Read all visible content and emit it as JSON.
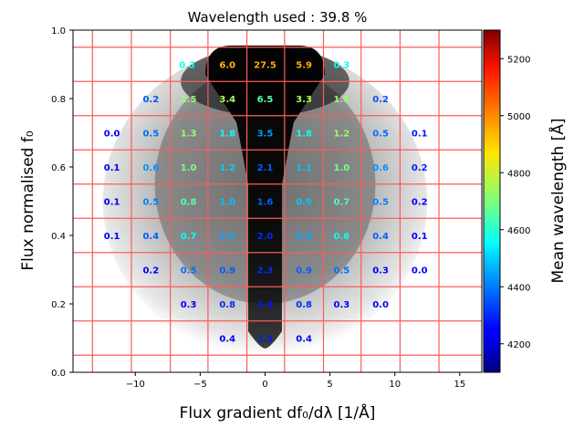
{
  "chart_data": {
    "type": "heatmap",
    "title": "Wavelength used : 39.8 %",
    "xlabel": "Flux gradient df₀/dλ [1/Å]",
    "ylabel": "Flux normalised f₀",
    "xlim": [
      -14.8,
      16.7
    ],
    "ylim": [
      0.0,
      1.0
    ],
    "xticks": [
      -10,
      -5,
      0,
      5,
      10,
      15
    ],
    "xtick_labels": [
      "−10",
      "−5",
      "0",
      "5",
      "10",
      "15"
    ],
    "yticks": [
      0.0,
      0.2,
      0.4,
      0.6,
      0.8,
      1.0
    ],
    "ytick_labels": [
      "0.0",
      "0.2",
      "0.4",
      "0.6",
      "0.8",
      "1.0"
    ],
    "grid_x_edges": [
      -13.3,
      -10.3,
      -7.3,
      -4.4,
      -1.4,
      1.5,
      4.5,
      7.4,
      10.4,
      13.4
    ],
    "grid_y_edges": [
      0.05,
      0.15,
      0.25,
      0.35,
      0.45,
      0.55,
      0.65,
      0.75,
      0.85,
      0.95
    ],
    "grid_color": "#ff5a5a",
    "colorbar": {
      "label": "Mean wavelength [Å]",
      "range": [
        4100,
        5300
      ],
      "ticks": [
        4200,
        4400,
        4600,
        4800,
        5000,
        5200
      ],
      "tick_labels": [
        "4200",
        "4400",
        "4600",
        "4800",
        "5000",
        "5200"
      ],
      "colormap": "jet"
    },
    "cells": [
      {
        "x": -6.0,
        "y": 0.9,
        "text": "0.3",
        "wavelength": 4560
      },
      {
        "x": -2.9,
        "y": 0.9,
        "text": "6.0",
        "wavelength": 4930
      },
      {
        "x": 0.0,
        "y": 0.9,
        "text": "27.5",
        "wavelength": 4950
      },
      {
        "x": 3.0,
        "y": 0.9,
        "text": "5.9",
        "wavelength": 4940
      },
      {
        "x": 5.9,
        "y": 0.9,
        "text": "0.3",
        "wavelength": 4560
      },
      {
        "x": -8.8,
        "y": 0.8,
        "text": "0.2",
        "wavelength": 4350
      },
      {
        "x": -5.9,
        "y": 0.8,
        "text": "1.5",
        "wavelength": 4720
      },
      {
        "x": -2.9,
        "y": 0.8,
        "text": "3.4",
        "wavelength": 4750
      },
      {
        "x": 0.0,
        "y": 0.8,
        "text": "6.5",
        "wavelength": 4650
      },
      {
        "x": 3.0,
        "y": 0.8,
        "text": "3.3",
        "wavelength": 4750
      },
      {
        "x": 5.9,
        "y": 0.8,
        "text": "1.5",
        "wavelength": 4720
      },
      {
        "x": 8.9,
        "y": 0.8,
        "text": "0.2",
        "wavelength": 4350
      },
      {
        "x": -11.8,
        "y": 0.7,
        "text": "0.0",
        "wavelength": 4250
      },
      {
        "x": -8.8,
        "y": 0.7,
        "text": "0.5",
        "wavelength": 4380
      },
      {
        "x": -5.9,
        "y": 0.7,
        "text": "1.3",
        "wavelength": 4720
      },
      {
        "x": -2.9,
        "y": 0.7,
        "text": "1.8",
        "wavelength": 4560
      },
      {
        "x": 0.0,
        "y": 0.7,
        "text": "3.5",
        "wavelength": 4430
      },
      {
        "x": 3.0,
        "y": 0.7,
        "text": "1.8",
        "wavelength": 4560
      },
      {
        "x": 5.9,
        "y": 0.7,
        "text": "1.2",
        "wavelength": 4720
      },
      {
        "x": 8.9,
        "y": 0.7,
        "text": "0.5",
        "wavelength": 4380
      },
      {
        "x": 11.9,
        "y": 0.7,
        "text": "0.1",
        "wavelength": 4280
      },
      {
        "x": -11.8,
        "y": 0.6,
        "text": "0.1",
        "wavelength": 4250
      },
      {
        "x": -8.8,
        "y": 0.6,
        "text": "0.6",
        "wavelength": 4420
      },
      {
        "x": -5.9,
        "y": 0.6,
        "text": "1.0",
        "wavelength": 4690
      },
      {
        "x": -2.9,
        "y": 0.6,
        "text": "1.2",
        "wavelength": 4490
      },
      {
        "x": 0.0,
        "y": 0.6,
        "text": "2.1",
        "wavelength": 4360
      },
      {
        "x": 3.0,
        "y": 0.6,
        "text": "1.1",
        "wavelength": 4480
      },
      {
        "x": 5.9,
        "y": 0.6,
        "text": "1.0",
        "wavelength": 4690
      },
      {
        "x": 8.9,
        "y": 0.6,
        "text": "0.6",
        "wavelength": 4420
      },
      {
        "x": 11.9,
        "y": 0.6,
        "text": "0.2",
        "wavelength": 4280
      },
      {
        "x": -11.8,
        "y": 0.5,
        "text": "0.1",
        "wavelength": 4250
      },
      {
        "x": -8.8,
        "y": 0.5,
        "text": "0.5",
        "wavelength": 4400
      },
      {
        "x": -5.9,
        "y": 0.5,
        "text": "0.8",
        "wavelength": 4650
      },
      {
        "x": -2.9,
        "y": 0.5,
        "text": "1.0",
        "wavelength": 4480
      },
      {
        "x": 0.0,
        "y": 0.5,
        "text": "1.6",
        "wavelength": 4360
      },
      {
        "x": 3.0,
        "y": 0.5,
        "text": "0.9",
        "wavelength": 4480
      },
      {
        "x": 5.9,
        "y": 0.5,
        "text": "0.7",
        "wavelength": 4640
      },
      {
        "x": 8.9,
        "y": 0.5,
        "text": "0.5",
        "wavelength": 4400
      },
      {
        "x": 11.9,
        "y": 0.5,
        "text": "0.2",
        "wavelength": 4250
      },
      {
        "x": -11.8,
        "y": 0.4,
        "text": "0.1",
        "wavelength": 4250
      },
      {
        "x": -8.8,
        "y": 0.4,
        "text": "0.4",
        "wavelength": 4360
      },
      {
        "x": -5.9,
        "y": 0.4,
        "text": "0.7",
        "wavelength": 4560
      },
      {
        "x": -2.9,
        "y": 0.4,
        "text": "0.9",
        "wavelength": 4450
      },
      {
        "x": 0.0,
        "y": 0.4,
        "text": "2.0",
        "wavelength": 4300
      },
      {
        "x": 3.0,
        "y": 0.4,
        "text": "0.9",
        "wavelength": 4450
      },
      {
        "x": 5.9,
        "y": 0.4,
        "text": "0.6",
        "wavelength": 4560
      },
      {
        "x": 8.9,
        "y": 0.4,
        "text": "0.4",
        "wavelength": 4360
      },
      {
        "x": 11.9,
        "y": 0.4,
        "text": "0.1",
        "wavelength": 4250
      },
      {
        "x": -8.8,
        "y": 0.3,
        "text": "0.2",
        "wavelength": 4250
      },
      {
        "x": -5.9,
        "y": 0.3,
        "text": "0.5",
        "wavelength": 4380
      },
      {
        "x": -2.9,
        "y": 0.3,
        "text": "0.9",
        "wavelength": 4360
      },
      {
        "x": 0.0,
        "y": 0.3,
        "text": "2.3",
        "wavelength": 4300
      },
      {
        "x": 3.0,
        "y": 0.3,
        "text": "0.9",
        "wavelength": 4360
      },
      {
        "x": 5.9,
        "y": 0.3,
        "text": "0.5",
        "wavelength": 4380
      },
      {
        "x": 8.9,
        "y": 0.3,
        "text": "0.3",
        "wavelength": 4250
      },
      {
        "x": 11.9,
        "y": 0.3,
        "text": "0.0",
        "wavelength": 4250
      },
      {
        "x": -5.9,
        "y": 0.2,
        "text": "0.3",
        "wavelength": 4250
      },
      {
        "x": -2.9,
        "y": 0.2,
        "text": "0.8",
        "wavelength": 4300
      },
      {
        "x": 0.0,
        "y": 0.2,
        "text": "2.6",
        "wavelength": 4280
      },
      {
        "x": 3.0,
        "y": 0.2,
        "text": "0.8",
        "wavelength": 4300
      },
      {
        "x": 5.9,
        "y": 0.2,
        "text": "0.3",
        "wavelength": 4250
      },
      {
        "x": 8.9,
        "y": 0.2,
        "text": "0.0",
        "wavelength": 4250
      },
      {
        "x": -2.9,
        "y": 0.1,
        "text": "0.4",
        "wavelength": 4250
      },
      {
        "x": 0.0,
        "y": 0.1,
        "text": "1.5",
        "wavelength": 4280
      },
      {
        "x": 3.0,
        "y": 0.1,
        "text": "0.4",
        "wavelength": 4250
      }
    ]
  }
}
